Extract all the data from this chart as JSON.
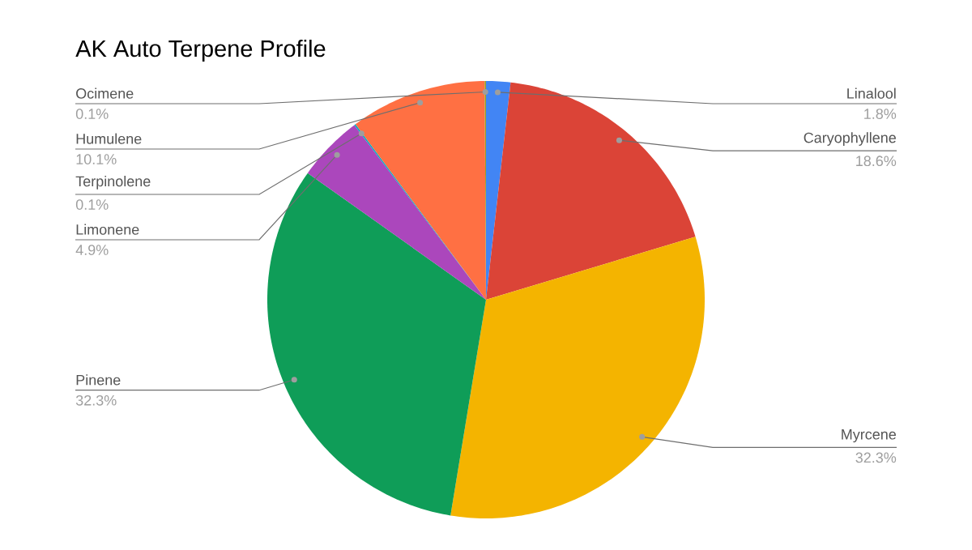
{
  "chart_data": {
    "type": "pie",
    "title": "AK Auto Terpene Profile",
    "categories": [
      "Linalool",
      "Caryophyllene",
      "Myrcene",
      "Pinene",
      "Limonene",
      "Terpinolene",
      "Humulene",
      "Ocimene"
    ],
    "values": [
      1.8,
      18.6,
      32.3,
      32.3,
      4.9,
      0.1,
      10.1,
      0.1
    ],
    "value_labels": [
      "1.8%",
      "18.6%",
      "32.3%",
      "32.3%",
      "4.9%",
      "0.1%",
      "10.1%",
      "0.1%"
    ],
    "colors": [
      "#4285f4",
      "#db4437",
      "#f4b400",
      "#0f9d58",
      "#ab47bc",
      "#00acc1",
      "#ff7043",
      "#9e9d24"
    ]
  }
}
